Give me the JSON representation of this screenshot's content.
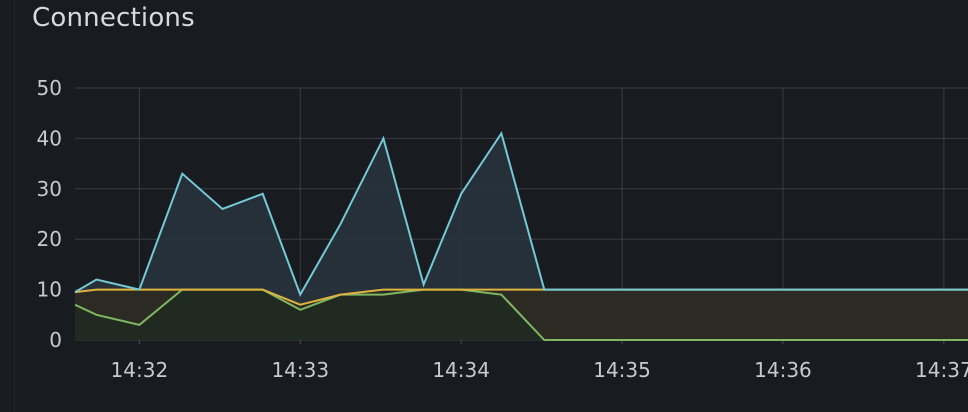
{
  "panel": {
    "title": "Connections"
  },
  "chart_data": {
    "type": "area",
    "title": "Connections",
    "xlabel": "",
    "ylabel": "",
    "ylim": [
      0,
      50
    ],
    "yticks": [
      0,
      10,
      20,
      30,
      40,
      50
    ],
    "xticks": [
      "14:32",
      "14:33",
      "14:34",
      "14:35",
      "14:36",
      "14:37"
    ],
    "xlim_minutes": [
      31.6,
      37.15
    ],
    "grid": true,
    "legend": "none",
    "series": [
      {
        "color": "#73c9d6",
        "fill": "#28343e",
        "points": [
          [
            "14:31:36",
            9.5
          ],
          [
            "14:31:44",
            12
          ],
          [
            "14:32:00",
            10
          ],
          [
            "14:32:16",
            33
          ],
          [
            "14:32:31",
            26
          ],
          [
            "14:32:46",
            29
          ],
          [
            "14:33:00",
            9
          ],
          [
            "14:33:15",
            23
          ],
          [
            "14:33:31",
            40
          ],
          [
            "14:33:46",
            11
          ],
          [
            "14:34:00",
            29
          ],
          [
            "14:34:15",
            41
          ],
          [
            "14:34:31",
            10
          ],
          [
            "14:35:00",
            10
          ],
          [
            "14:36:00",
            10
          ],
          [
            "14:37:09",
            10
          ]
        ]
      },
      {
        "color": "#e0b33f",
        "fill": "#2e2a20",
        "points": [
          [
            "14:31:36",
            9.5
          ],
          [
            "14:31:44",
            10
          ],
          [
            "14:32:00",
            10
          ],
          [
            "14:32:16",
            10
          ],
          [
            "14:32:46",
            10
          ],
          [
            "14:33:00",
            7
          ],
          [
            "14:33:15",
            9
          ],
          [
            "14:33:31",
            10
          ],
          [
            "14:34:00",
            10
          ],
          [
            "14:34:31",
            10
          ],
          [
            "14:35:00",
            10
          ],
          [
            "14:37:09",
            10
          ]
        ]
      },
      {
        "color": "#7fb661",
        "fill": "#202a20",
        "points": [
          [
            "14:31:36",
            7
          ],
          [
            "14:31:44",
            5
          ],
          [
            "14:32:00",
            3
          ],
          [
            "14:32:16",
            10
          ],
          [
            "14:32:46",
            10
          ],
          [
            "14:33:00",
            6
          ],
          [
            "14:33:15",
            9
          ],
          [
            "14:33:31",
            9
          ],
          [
            "14:33:46",
            10
          ],
          [
            "14:34:00",
            10
          ],
          [
            "14:34:15",
            9
          ],
          [
            "14:34:31",
            0
          ],
          [
            "14:35:00",
            0
          ],
          [
            "14:37:09",
            0
          ]
        ]
      }
    ]
  }
}
